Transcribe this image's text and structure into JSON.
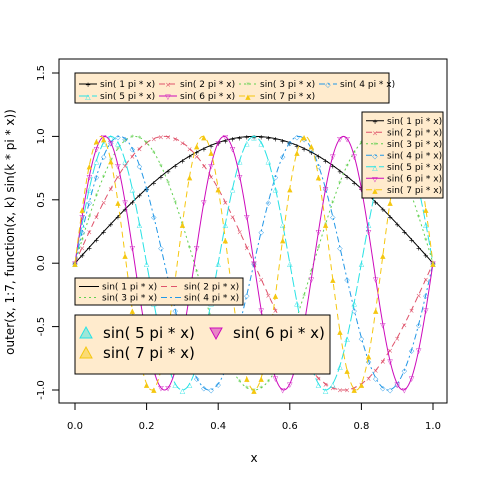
{
  "chart_data": {
    "type": "line",
    "xlabel": "x",
    "ylabel": "outer(x, 1:7, function(x, k) sin(k * pi * x))",
    "xlim": [
      0,
      1
    ],
    "ylim": [
      -1,
      1.5
    ],
    "xticks": [
      0.0,
      0.2,
      0.4,
      0.6,
      0.8,
      1.0
    ],
    "xtick_labels": [
      "0.0",
      "0.2",
      "0.4",
      "0.6",
      "0.8",
      "1.0"
    ],
    "yticks": [
      -1.0,
      -0.5,
      0.0,
      0.5,
      1.0,
      1.5
    ],
    "ytick_labels": [
      "-1.0",
      "-0.5",
      "0.0",
      "0.5",
      "1.0",
      "1.5"
    ],
    "x": [
      0,
      0.02,
      0.04,
      0.06,
      0.08,
      0.1,
      0.12,
      0.14,
      0.16,
      0.18,
      0.2,
      0.22,
      0.24,
      0.26,
      0.28,
      0.3,
      0.32,
      0.34,
      0.36,
      0.38,
      0.4,
      0.42,
      0.44,
      0.46,
      0.48,
      0.5,
      0.52,
      0.54,
      0.56,
      0.58,
      0.6,
      0.62,
      0.64,
      0.66,
      0.68,
      0.7,
      0.72,
      0.74,
      0.76,
      0.78,
      0.8,
      0.82,
      0.84,
      0.86,
      0.88,
      0.9,
      0.92,
      0.94,
      0.96,
      0.98,
      1
    ],
    "grid": false,
    "series": [
      {
        "name": "sin( 1 pi * x)",
        "k": 1,
        "color": "#000000",
        "dash": "",
        "pch": "+",
        "values": [
          0,
          0.063,
          0.125,
          0.187,
          0.249,
          0.309,
          0.368,
          0.426,
          0.482,
          0.536,
          0.588,
          0.637,
          0.685,
          0.729,
          0.771,
          0.809,
          0.844,
          0.876,
          0.905,
          0.93,
          0.951,
          0.969,
          0.982,
          0.992,
          0.998,
          1.0,
          0.998,
          0.992,
          0.982,
          0.969,
          0.951,
          0.93,
          0.905,
          0.876,
          0.844,
          0.809,
          0.771,
          0.729,
          0.685,
          0.637,
          0.588,
          0.536,
          0.482,
          0.426,
          0.368,
          0.309,
          0.249,
          0.187,
          0.125,
          0.063,
          0
        ]
      },
      {
        "name": "sin( 2 pi * x)",
        "k": 2,
        "color": "#df536b",
        "dash": "6,4",
        "pch": "×",
        "values": [
          0,
          0.125,
          0.249,
          0.368,
          0.482,
          0.588,
          0.685,
          0.771,
          0.844,
          0.905,
          0.951,
          0.982,
          0.998,
          0.998,
          0.982,
          0.951,
          0.905,
          0.844,
          0.771,
          0.685,
          0.588,
          0.482,
          0.368,
          0.249,
          0.125,
          0,
          -0.125,
          -0.249,
          -0.368,
          -0.482,
          -0.588,
          -0.685,
          -0.771,
          -0.844,
          -0.905,
          -0.951,
          -0.982,
          -0.998,
          -0.998,
          -0.982,
          -0.951,
          -0.905,
          -0.844,
          -0.771,
          -0.685,
          -0.588,
          -0.482,
          -0.368,
          -0.249,
          -0.125,
          0
        ]
      },
      {
        "name": "sin( 3 pi * x)",
        "k": 3,
        "color": "#61d04f",
        "dash": "2,3",
        "pch": "*",
        "values": [
          0,
          0.187,
          0.368,
          0.536,
          0.685,
          0.809,
          0.905,
          0.969,
          0.998,
          0.992,
          0.951,
          0.876,
          0.771,
          0.637,
          0.482,
          0.309,
          0.125,
          -0.063,
          -0.249,
          -0.426,
          -0.588,
          -0.729,
          -0.844,
          -0.93,
          -0.982,
          -1.0,
          -0.982,
          -0.93,
          -0.844,
          -0.729,
          -0.588,
          -0.426,
          -0.249,
          -0.063,
          0.125,
          0.309,
          0.482,
          0.637,
          0.771,
          0.876,
          0.951,
          0.992,
          0.998,
          0.969,
          0.905,
          0.809,
          0.685,
          0.536,
          0.368,
          0.187,
          0
        ]
      },
      {
        "name": "sin( 4 pi * x)",
        "k": 4,
        "color": "#2297e6",
        "dash": "6,3,2,3",
        "pch": "◇",
        "values": [
          0,
          0.249,
          0.482,
          0.685,
          0.844,
          0.951,
          0.998,
          0.982,
          0.905,
          0.771,
          0.588,
          0.368,
          0.125,
          -0.125,
          -0.368,
          -0.588,
          -0.771,
          -0.905,
          -0.982,
          -0.998,
          -0.951,
          -0.844,
          -0.685,
          -0.482,
          -0.249,
          0,
          0.249,
          0.482,
          0.685,
          0.844,
          0.951,
          0.998,
          0.982,
          0.905,
          0.771,
          0.588,
          0.368,
          0.125,
          -0.125,
          -0.368,
          -0.588,
          -0.771,
          -0.905,
          -0.982,
          -0.998,
          -0.951,
          -0.844,
          -0.685,
          -0.482,
          -0.249,
          0
        ]
      },
      {
        "name": "sin( 5 pi * x)",
        "k": 5,
        "color": "#28e2e5",
        "dash": "10,3",
        "pch": "△",
        "values": [
          0,
          0.309,
          0.588,
          0.809,
          0.951,
          1.0,
          0.951,
          0.809,
          0.588,
          0.309,
          0,
          -0.309,
          -0.588,
          -0.809,
          -0.951,
          -1.0,
          -0.951,
          -0.809,
          -0.588,
          -0.309,
          0,
          0.309,
          0.588,
          0.809,
          0.951,
          1.0,
          0.951,
          0.809,
          0.588,
          0.309,
          0,
          -0.309,
          -0.588,
          -0.809,
          -0.951,
          -1.0,
          -0.951,
          -0.809,
          -0.588,
          -0.309,
          0,
          0.309,
          0.588,
          0.809,
          0.951,
          1.0,
          0.951,
          0.809,
          0.588,
          0.309,
          0
        ]
      },
      {
        "name": "sin( 6 pi * x)",
        "k": 6,
        "color": "#cd0bbc",
        "dash": "",
        "pch": "▽",
        "values": [
          0,
          0.368,
          0.685,
          0.905,
          0.998,
          0.951,
          0.771,
          0.482,
          0.125,
          -0.249,
          -0.588,
          -0.844,
          -0.982,
          -0.982,
          -0.844,
          -0.588,
          -0.249,
          0.125,
          0.482,
          0.771,
          0.951,
          0.998,
          0.905,
          0.685,
          0.368,
          0,
          -0.368,
          -0.685,
          -0.905,
          -0.998,
          -0.951,
          -0.771,
          -0.482,
          -0.125,
          0.249,
          0.588,
          0.844,
          0.982,
          0.982,
          0.844,
          0.588,
          0.249,
          -0.125,
          -0.482,
          -0.771,
          -0.951,
          -0.998,
          -0.905,
          -0.685,
          -0.368,
          0
        ]
      },
      {
        "name": "sin( 7 pi * x)",
        "k": 7,
        "color": "#f5c710",
        "dash": "6,4",
        "pch": "▲",
        "values": [
          0,
          0.426,
          0.771,
          0.969,
          0.982,
          0.809,
          0.482,
          0.063,
          -0.368,
          -0.729,
          -0.951,
          -0.992,
          -0.844,
          -0.536,
          -0.125,
          0.309,
          0.685,
          0.93,
          0.998,
          0.876,
          0.588,
          0.187,
          -0.249,
          -0.637,
          -0.905,
          -1.0,
          -0.905,
          -0.637,
          -0.249,
          0.187,
          0.588,
          0.876,
          0.998,
          0.93,
          0.685,
          0.309,
          -0.125,
          -0.536,
          -0.844,
          -0.992,
          -0.951,
          -0.729,
          -0.368,
          0.063,
          0.482,
          0.809,
          0.982,
          0.969,
          0.771,
          0.426,
          0
        ]
      }
    ],
    "legends": [
      {
        "placement": "top-left",
        "background": "#ffebcd",
        "entries": [
          0,
          1,
          2,
          3,
          4,
          5,
          6
        ],
        "columns": 4
      },
      {
        "placement": "top-right",
        "background": "#ffebcd",
        "entries": [
          0,
          1,
          2,
          3,
          4,
          5,
          6
        ],
        "columns": 1
      },
      {
        "placement": "middle-left",
        "background": "#ffebcd",
        "entries": [
          0,
          1,
          2,
          3
        ],
        "columns": 2,
        "lines_only": true
      },
      {
        "placement": "bottom-left",
        "background": "#ffebcd",
        "entries": [
          4,
          5,
          6
        ],
        "columns": 2,
        "large": true,
        "filled_symbols": true
      }
    ]
  }
}
